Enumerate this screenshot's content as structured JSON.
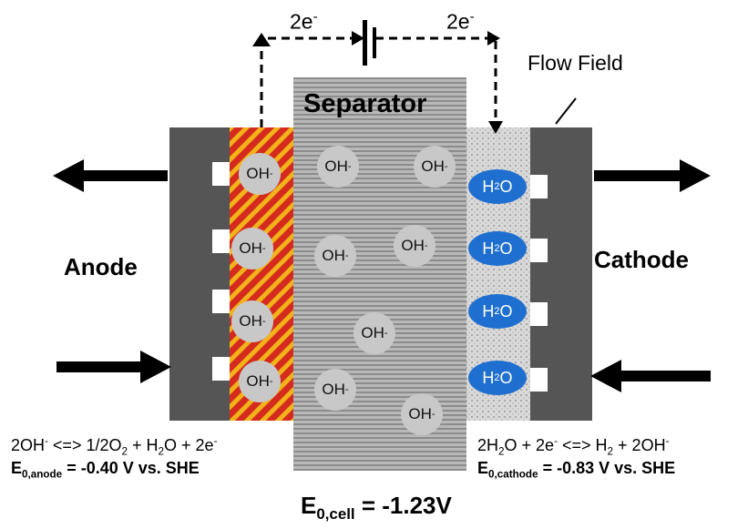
{
  "labels": {
    "anode": "Anode",
    "cathode": "Cathode",
    "separator": "Separator",
    "flow_field": "Flow Field",
    "electron_left_base": "2e",
    "electron_left_sup": "-",
    "electron_right_base": "2e",
    "electron_right_sup": "-"
  },
  "ions": {
    "oh_base": "OH",
    "oh_sup": "-",
    "h2o_a": "H",
    "h2o_sub": "2",
    "h2o_b": "O"
  },
  "equations": {
    "anode_reaction": {
      "p1": "2OH",
      "p1_sup": "-",
      "p2": " <=> 1/2O",
      "p2_sub": "2",
      "p3": " + H",
      "p3_sub": "2",
      "p4": "O + 2e",
      "p4_sup": "-"
    },
    "anode_potential": {
      "e": "E",
      "sub": "0,anode",
      "rest": " = -0.40 V vs. SHE"
    },
    "cathode_reaction": {
      "p1": "2H",
      "p1_sub": "2",
      "p2": "O + 2e",
      "p2_sup": "-",
      "p3": "  <=> H",
      "p3_sub": "2",
      "p4": " + 2OH",
      "p4_sup": "-"
    },
    "cathode_potential": {
      "e": "E",
      "sub": "0,cathode",
      "rest": " = -0.83 V vs. SHE"
    },
    "cell_potential": {
      "e": "E",
      "sub": "0,cell",
      "rest": " = -1.23V"
    }
  },
  "colors": {
    "flow_field": "#555555",
    "catalyst_red": "#d42b1e",
    "catalyst_yellow": "#f2b21a",
    "separator_gray": "#b0b0b0",
    "oh_bubble": "#c8c8c8",
    "h2o_bubble": "#1f6fd0"
  }
}
